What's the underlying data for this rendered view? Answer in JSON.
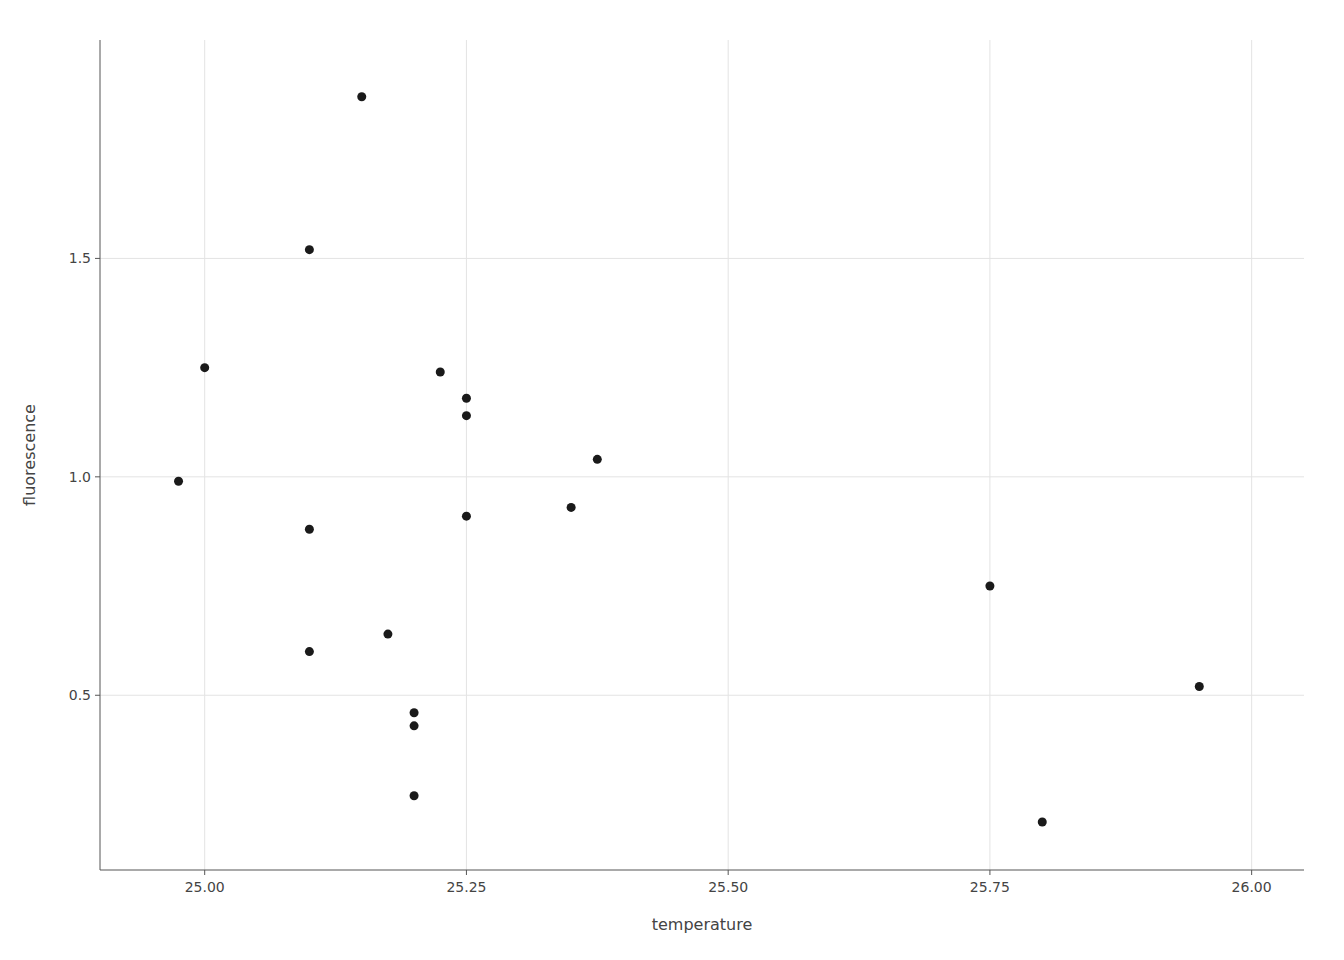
{
  "chart_data": {
    "type": "scatter",
    "x": [
      24.975,
      25.0,
      25.1,
      25.1,
      25.1,
      25.15,
      25.175,
      25.2,
      25.2,
      25.2,
      25.225,
      25.25,
      25.25,
      25.25,
      25.35,
      25.375,
      25.75,
      25.8,
      25.95
    ],
    "values": [
      0.99,
      1.25,
      1.52,
      0.88,
      0.6,
      1.87,
      0.64,
      0.43,
      0.46,
      0.27,
      1.24,
      1.18,
      0.91,
      1.14,
      0.93,
      1.04,
      0.75,
      0.21,
      0.52
    ],
    "xlabel": "temperature",
    "ylabel": "fluorescence",
    "xlim": [
      24.9,
      26.05
    ],
    "ylim": [
      0.1,
      2.0
    ],
    "xticks": [
      {
        "value": 25.0,
        "label": "25.00"
      },
      {
        "value": 25.25,
        "label": "25.25"
      },
      {
        "value": 25.5,
        "label": "25.50"
      },
      {
        "value": 25.75,
        "label": "25.75"
      },
      {
        "value": 26.0,
        "label": "26.00"
      }
    ],
    "yticks": [
      0.5,
      {
        "value": 1.0,
        "label": "1.0"
      },
      1.5
    ],
    "color": "#1a1a1a",
    "grid": true
  }
}
